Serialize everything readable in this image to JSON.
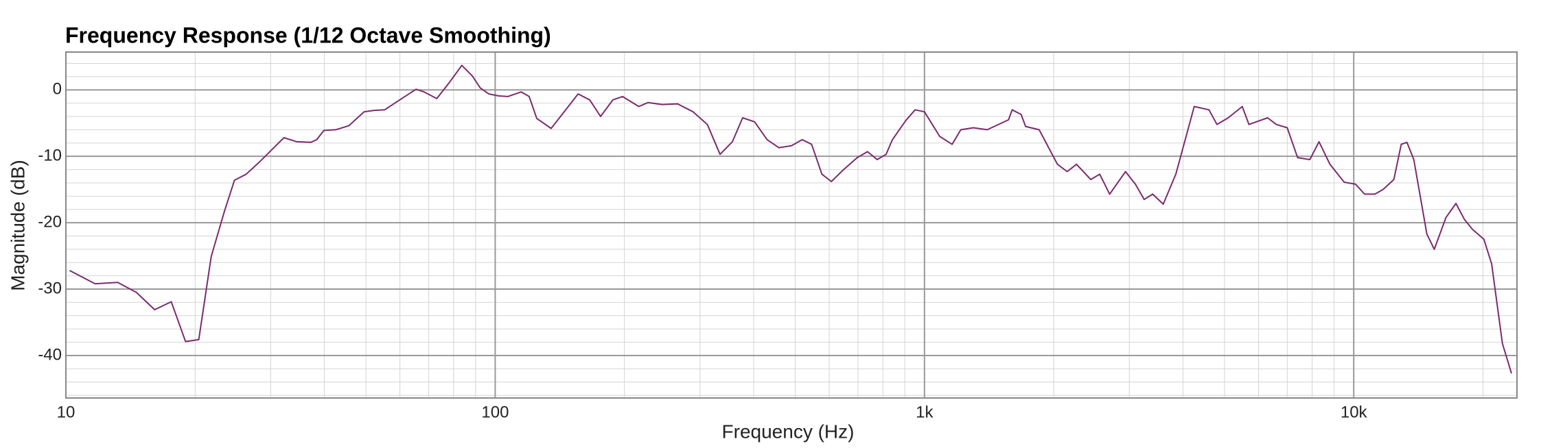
{
  "chart_data": {
    "type": "line",
    "title": "Frequency Response (1/12 Octave Smoothing)",
    "xlabel": "Frequency (Hz)",
    "ylabel": "Magnitude (dB)",
    "xscale": "log",
    "grid": true,
    "color": "#7b2a6e",
    "xlim": [
      10,
      24000
    ],
    "ylim": [
      -46.4,
      5.7
    ],
    "xticks": [
      10,
      100,
      {
        "value": 1000,
        "label": "1k"
      },
      {
        "value": 10000,
        "label": "10k"
      }
    ],
    "yticks": [
      0,
      -10,
      -20,
      -30,
      -40
    ],
    "xminor": [
      20,
      30,
      40,
      50,
      60,
      70,
      80,
      90,
      200,
      300,
      400,
      500,
      600,
      700,
      800,
      900,
      2000,
      3000,
      4000,
      5000,
      6000,
      7000,
      8000,
      9000,
      20000
    ],
    "yminor": [
      4,
      2,
      -2,
      -4,
      -6,
      -8,
      -12,
      -14,
      -16,
      -18,
      -22,
      -24,
      -26,
      -28,
      -32,
      -34,
      -36,
      -38,
      -42,
      -44,
      -46
    ],
    "x": [
      10.2,
      11.7,
      13.2,
      14.6,
      16.1,
      17.6,
      19,
      20.4,
      21.8,
      23.4,
      24.7,
      26.3,
      28.2,
      32.2,
      34.5,
      37.2,
      38.4,
      39.9,
      42.5,
      45.6,
      49.5,
      52.1,
      55.3,
      59.6,
      65.4,
      68.3,
      73.1,
      78.4,
      83.6,
      88.5,
      92.3,
      96.6,
      101.9,
      107,
      115,
      120,
      125,
      135,
      142,
      156,
      166,
      176,
      188,
      198,
      216,
      227,
      245,
      266,
      289,
      312,
      334,
      357,
      377,
      402,
      430,
      458,
      490,
      519,
      546,
      577,
      607,
      648,
      697,
      737,
      776,
      814,
      842,
      905,
      951,
      1000,
      1085,
      1160,
      1215,
      1300,
      1400,
      1570,
      1600,
      1680,
      1720,
      1850,
      2040,
      2150,
      2260,
      2440,
      2560,
      2700,
      2940,
      3100,
      3250,
      3400,
      3600,
      3850,
      4050,
      4250,
      4600,
      4800,
      5100,
      5500,
      5700,
      6300,
      6600,
      7000,
      7400,
      7900,
      8300,
      8800,
      9500,
      10100,
      10600,
      11200,
      11700,
      12400,
      12900,
      13300,
      13800,
      14800,
      15400,
      16400,
      17300,
      18100,
      18900,
      20100,
      20950,
      22200,
      23300
    ],
    "values": [
      -27.2,
      -29.2,
      -29,
      -30.5,
      -33.1,
      -31.9,
      -37.9,
      -37.6,
      -25.1,
      -18.3,
      -13.6,
      -12.7,
      -10.9,
      -7.2,
      -7.8,
      -7.9,
      -7.5,
      -6.1,
      -6,
      -5.4,
      -3.3,
      -3.1,
      -3,
      -1.6,
      0.1,
      -0.3,
      -1.3,
      1.2,
      3.7,
      2.1,
      0.3,
      -0.6,
      -0.9,
      -1,
      -0.3,
      -1,
      -4.3,
      -5.8,
      -4,
      -0.6,
      -1.5,
      -4,
      -1.5,
      -1,
      -2.5,
      -1.9,
      -2.2,
      -2.1,
      -3.3,
      -5.2,
      -9.7,
      -7.8,
      -4.2,
      -4.8,
      -7.5,
      -8.7,
      -8.4,
      -7.5,
      -8.2,
      -12.7,
      -13.8,
      -12,
      -10.2,
      -9.3,
      -10.5,
      -9.7,
      -7.5,
      -4.6,
      -3,
      -3.3,
      -7,
      -8.2,
      -6,
      -5.7,
      -6,
      -4.5,
      -3,
      -3.7,
      -5.5,
      -6,
      -11.2,
      -12.3,
      -11.2,
      -13.5,
      -12.7,
      -15.7,
      -12.3,
      -14.2,
      -16.5,
      -15.7,
      -17.2,
      -12.7,
      -7.5,
      -2.5,
      -3,
      -5.2,
      -4.2,
      -2.5,
      -5.2,
      -4.2,
      -5.2,
      -5.7,
      -10.2,
      -10.5,
      -7.8,
      -11.2,
      -13.9,
      -14.2,
      -15.7,
      -15.7,
      -15,
      -13.5,
      -8.2,
      -7.9,
      -10.5,
      -21.7,
      -24,
      -19.2,
      -17.1,
      -19.5,
      -21,
      -22.5,
      -26.2,
      -38.2,
      -42.7
    ]
  }
}
